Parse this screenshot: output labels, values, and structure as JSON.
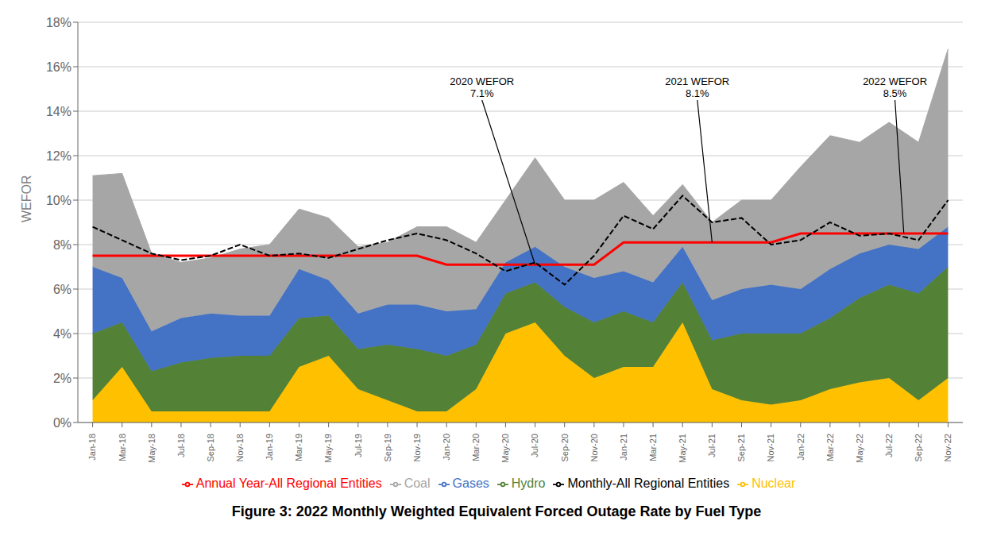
{
  "chart_data": {
    "type": "area",
    "stacked": true,
    "title": "Figure 3: 2022 Monthly Weighted Equivalent Forced Outage Rate by Fuel Type",
    "y_label": "WEFOR",
    "categories": [
      "Jan-18",
      "Mar-18",
      "May-18",
      "Jul-18",
      "Sep-18",
      "Nov-18",
      "Jan-19",
      "Mar-19",
      "May-19",
      "Jul-19",
      "Sep-19",
      "Nov-19",
      "Jan-20",
      "Mar-20",
      "May-20",
      "Jul-20",
      "Sep-20",
      "Nov-20",
      "Jan-21",
      "Mar-21",
      "May-21",
      "Jul-21",
      "Sep-21",
      "Nov-21",
      "Jan-22",
      "Mar-22",
      "May-22",
      "Jul-22",
      "Sep-22",
      "Nov-22"
    ],
    "series": [
      {
        "name": "Nuclear",
        "type": "area",
        "color": "#FFC000",
        "values": [
          0.01,
          0.025,
          0.005,
          0.005,
          0.005,
          0.005,
          0.005,
          0.025,
          0.03,
          0.015,
          0.01,
          0.005,
          0.005,
          0.015,
          0.04,
          0.045,
          0.03,
          0.02,
          0.025,
          0.025,
          0.045,
          0.015,
          0.01,
          0.008,
          0.01,
          0.015,
          0.018,
          0.02,
          0.01,
          0.02
        ]
      },
      {
        "name": "Hydro",
        "type": "area",
        "color": "#538135",
        "values": [
          0.03,
          0.02,
          0.018,
          0.022,
          0.024,
          0.025,
          0.025,
          0.022,
          0.018,
          0.018,
          0.025,
          0.028,
          0.025,
          0.02,
          0.018,
          0.018,
          0.022,
          0.025,
          0.025,
          0.02,
          0.018,
          0.022,
          0.03,
          0.032,
          0.03,
          0.032,
          0.038,
          0.042,
          0.048,
          0.05
        ]
      },
      {
        "name": "Gases",
        "type": "area",
        "color": "#4472C4",
        "values": [
          0.03,
          0.02,
          0.018,
          0.02,
          0.02,
          0.018,
          0.018,
          0.022,
          0.016,
          0.016,
          0.018,
          0.02,
          0.02,
          0.016,
          0.014,
          0.016,
          0.018,
          0.02,
          0.018,
          0.018,
          0.016,
          0.018,
          0.02,
          0.022,
          0.02,
          0.022,
          0.02,
          0.018,
          0.02,
          0.018
        ]
      },
      {
        "name": "Coal",
        "type": "area",
        "color": "#A6A6A6",
        "values": [
          0.041,
          0.047,
          0.035,
          0.025,
          0.025,
          0.03,
          0.032,
          0.027,
          0.028,
          0.03,
          0.028,
          0.035,
          0.038,
          0.03,
          0.028,
          0.04,
          0.03,
          0.035,
          0.04,
          0.03,
          0.028,
          0.035,
          0.04,
          0.038,
          0.055,
          0.06,
          0.05,
          0.055,
          0.048,
          0.08
        ]
      },
      {
        "name": "Annual Year-All Regional Entities",
        "type": "line",
        "line_style": "solid",
        "color": "#FF0000",
        "values": [
          0.075,
          null,
          null,
          null,
          null,
          0.075,
          0.075,
          null,
          null,
          null,
          null,
          0.075,
          0.071,
          null,
          null,
          null,
          null,
          0.071,
          0.081,
          null,
          null,
          null,
          null,
          0.081,
          0.085,
          null,
          null,
          null,
          null,
          0.085
        ]
      },
      {
        "name": "Monthly-All Regional Entities",
        "type": "line",
        "line_style": "dashed",
        "color": "#000000",
        "values": [
          0.088,
          0.082,
          0.076,
          0.073,
          0.075,
          0.08,
          0.075,
          0.076,
          0.074,
          0.078,
          0.082,
          0.085,
          0.082,
          0.076,
          0.068,
          0.072,
          0.062,
          0.075,
          0.093,
          0.087,
          0.102,
          0.09,
          0.092,
          0.08,
          0.082,
          0.09,
          0.084,
          0.085,
          0.082,
          0.1
        ]
      }
    ],
    "ylim": [
      0,
      0.18
    ],
    "yticks": [
      {
        "value": 0,
        "label": "0%"
      },
      {
        "value": 0.02,
        "label": "2%"
      },
      {
        "value": 0.04,
        "label": "4%"
      },
      {
        "value": 0.06,
        "label": "6%"
      },
      {
        "value": 0.08,
        "label": "8%"
      },
      {
        "value": 0.1,
        "label": "10%"
      },
      {
        "value": 0.12,
        "label": "12%"
      },
      {
        "value": 0.14,
        "label": "14%"
      },
      {
        "value": 0.16,
        "label": "16%"
      },
      {
        "value": 0.18,
        "label": "18%"
      }
    ],
    "grid": true,
    "legend": "bottom",
    "annotations": [
      {
        "text": "2020 WEFOR\n7.1%",
        "x": 15.0,
        "y": 0.071,
        "text_x": 13.2,
        "text_y": 0.145
      },
      {
        "text": "2021 WEFOR\n8.1%",
        "x": 21.0,
        "y": 0.081,
        "text_x": 20.5,
        "text_y": 0.145
      },
      {
        "text": "2022 WEFOR\n8.5%",
        "x": 27.5,
        "y": 0.085,
        "text_x": 27.2,
        "text_y": 0.145
      }
    ]
  }
}
